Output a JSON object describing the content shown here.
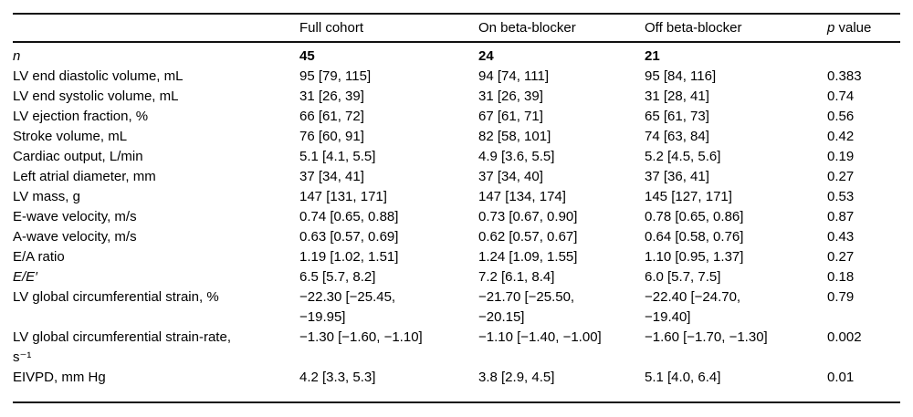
{
  "table": {
    "header": {
      "empty": "",
      "full_cohort": "Full cohort",
      "on_beta_blocker": "On beta-blocker",
      "off_beta_blocker": "Off beta-blocker",
      "p_italic": "p",
      "p_rest": " value"
    },
    "value_column_names": [
      "full-cohort-value",
      "on-beta-blocker-value",
      "off-beta-blocker-value",
      "p-value"
    ],
    "rows": [
      {
        "label": "n",
        "italic": true,
        "bold": true,
        "values": [
          "45",
          "24",
          "21",
          ""
        ]
      },
      {
        "label": "LV end diastolic volume, mL",
        "values": [
          "95 [79, 115]",
          "94 [74, 111]",
          "95 [84, 116]",
          "0.383"
        ]
      },
      {
        "label": "LV end systolic volume, mL",
        "values": [
          "31 [26, 39]",
          "31 [26, 39]",
          "31 [28, 41]",
          "0.74"
        ]
      },
      {
        "label": "LV ejection fraction, %",
        "values": [
          "66 [61, 72]",
          "67 [61, 71]",
          "65 [61, 73]",
          "0.56"
        ]
      },
      {
        "label": "Stroke volume, mL",
        "values": [
          "76 [60, 91]",
          "82 [58, 101]",
          "74 [63, 84]",
          "0.42"
        ]
      },
      {
        "label": "Cardiac output, L/min",
        "values": [
          "5.1 [4.1, 5.5]",
          "4.9 [3.6, 5.5]",
          "5.2 [4.5, 5.6]",
          "0.19"
        ]
      },
      {
        "label": "Left atrial diameter, mm",
        "values": [
          "37 [34, 41]",
          "37 [34, 40]",
          "37 [36, 41]",
          "0.27"
        ]
      },
      {
        "label": "LV mass, g",
        "values": [
          "147 [131, 171]",
          "147 [134, 174]",
          "145 [127, 171]",
          "0.53"
        ]
      },
      {
        "label": "E-wave velocity, m/s",
        "values": [
          "0.74 [0.65, 0.88]",
          "0.73 [0.67, 0.90]",
          "0.78 [0.65, 0.86]",
          "0.87"
        ]
      },
      {
        "label": "A-wave velocity, m/s",
        "values": [
          "0.63 [0.57, 0.69]",
          "0.62 [0.57, 0.67]",
          "0.64 [0.58, 0.76]",
          "0.43"
        ]
      },
      {
        "label": "E/A ratio",
        "values": [
          "1.19 [1.02, 1.51]",
          "1.24 [1.09, 1.55]",
          "1.10 [0.95, 1.37]",
          "0.27"
        ]
      },
      {
        "label": "E/E′",
        "italic": true,
        "values": [
          "6.5 [5.7, 8.2]",
          "7.2 [6.1, 8.4]",
          "6.0 [5.7, 7.5]",
          "0.18"
        ]
      },
      {
        "label": "LV global circumferential strain, %",
        "values": [
          "−22.30 [−25.45, −19.95]",
          "−21.70 [−25.50, −20.15]",
          "−22.40 [−24.70, −19.40]",
          "0.79"
        ]
      },
      {
        "label": "LV global circumferential strain-rate, s⁻¹",
        "values": [
          "−1.30 [−1.60, −1.10]",
          "−1.10 [−1.40, −1.00]",
          "−1.60 [−1.70, −1.30]",
          "0.002"
        ]
      },
      {
        "label": "EIVPD, mm Hg",
        "values": [
          "4.2 [3.3, 5.3]",
          "3.8 [2.9, 4.5]",
          "5.1 [4.0, 6.4]",
          "0.01"
        ]
      }
    ]
  }
}
